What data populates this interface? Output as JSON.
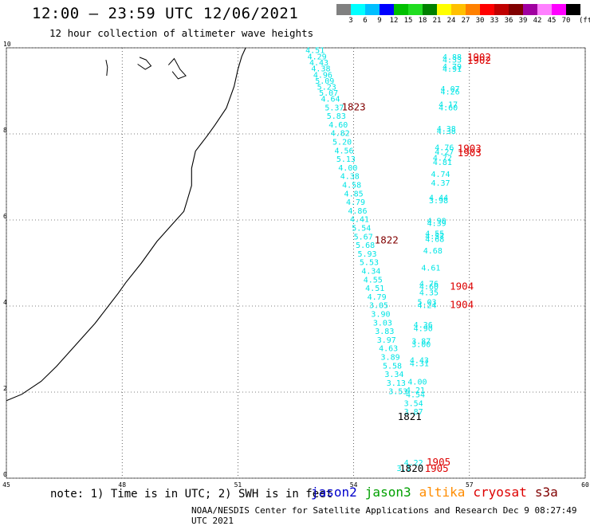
{
  "title": "12:00 – 23:59 UTC 12/06/2021",
  "subtitle": "12 hour collection of altimeter wave heights",
  "colorbar": {
    "colors": [
      "#808080",
      "#00ffff",
      "#00bfff",
      "#0000ff",
      "#00c000",
      "#20dd20",
      "#008000",
      "#ffff00",
      "#ffc000",
      "#ff8000",
      "#ff0000",
      "#c00000",
      "#800000",
      "#a000a0",
      "#ff80ff",
      "#ff00ff",
      "#000000"
    ],
    "labels": [
      "3",
      "6",
      "9",
      "12",
      "15",
      "18",
      "21",
      "24",
      "27",
      "30",
      "33",
      "36",
      "39",
      "42",
      "45",
      "70"
    ],
    "units": "(ft)"
  },
  "axes": {
    "lon_ticks": [
      "45",
      "48",
      "51",
      "54",
      "57",
      "60"
    ],
    "lat_ticks": [
      "0",
      "2",
      "4",
      "6",
      "8",
      "10"
    ]
  },
  "map_data": {
    "lon_range": [
      45,
      60
    ],
    "lat_range": [
      0,
      10
    ],
    "coastline": [
      [
        45.0,
        1.8
      ],
      [
        45.4,
        1.95
      ],
      [
        45.9,
        2.25
      ],
      [
        46.3,
        2.6
      ],
      [
        46.8,
        3.1
      ],
      [
        47.3,
        3.6
      ],
      [
        47.9,
        4.3
      ],
      [
        48.1,
        4.55
      ],
      [
        48.5,
        5.0
      ],
      [
        48.9,
        5.5
      ],
      [
        49.3,
        5.9
      ],
      [
        49.6,
        6.2
      ],
      [
        49.7,
        6.5
      ],
      [
        49.8,
        6.8
      ],
      [
        49.8,
        7.2
      ],
      [
        49.9,
        7.6
      ],
      [
        50.2,
        7.95
      ],
      [
        50.4,
        8.2
      ],
      [
        50.7,
        8.6
      ],
      [
        50.9,
        9.1
      ],
      [
        51.0,
        9.5
      ],
      [
        51.1,
        9.8
      ],
      [
        51.2,
        10.0
      ]
    ],
    "islands": [
      [
        [
          47.6,
          9.35
        ],
        [
          47.62,
          9.55
        ],
        [
          47.58,
          9.72
        ]
      ],
      [
        [
          48.4,
          9.62
        ],
        [
          48.6,
          9.5
        ],
        [
          48.75,
          9.58
        ],
        [
          48.62,
          9.72
        ],
        [
          48.45,
          9.78
        ]
      ],
      [
        [
          49.2,
          9.6
        ],
        [
          49.35,
          9.75
        ],
        [
          49.5,
          9.5
        ],
        [
          49.65,
          9.35
        ],
        [
          49.45,
          9.28
        ],
        [
          49.3,
          9.45
        ]
      ]
    ],
    "observations": [
      {
        "t": "4.51",
        "lon": 53.0,
        "lat": 9.88,
        "c": "#00e5e5"
      },
      {
        "t": "4.29",
        "lon": 53.05,
        "lat": 9.73,
        "c": "#00e5e5"
      },
      {
        "t": "4.43",
        "lon": 53.1,
        "lat": 9.59,
        "c": "#00e5e5"
      },
      {
        "t": "4.38",
        "lon": 53.15,
        "lat": 9.45,
        "c": "#00e5e5"
      },
      {
        "t": "4.96",
        "lon": 53.2,
        "lat": 9.31,
        "c": "#00e5e5"
      },
      {
        "t": "5.09",
        "lon": 53.25,
        "lat": 9.17,
        "c": "#00e5e5"
      },
      {
        "t": "5.23",
        "lon": 53.3,
        "lat": 9.03,
        "c": "#00e5e5"
      },
      {
        "t": "5.07",
        "lon": 53.35,
        "lat": 8.89,
        "c": "#00e5e5"
      },
      {
        "t": "4.64",
        "lon": 53.4,
        "lat": 8.75,
        "c": "#00e5e5"
      },
      {
        "t": "5.37",
        "lon": 53.5,
        "lat": 8.55,
        "c": "#00e5e5"
      },
      {
        "t": "5.83",
        "lon": 53.55,
        "lat": 8.35,
        "c": "#00e5e5"
      },
      {
        "t": "4.60",
        "lon": 53.6,
        "lat": 8.15,
        "c": "#00e5e5"
      },
      {
        "t": "4.82",
        "lon": 53.65,
        "lat": 7.95,
        "c": "#00e5e5"
      },
      {
        "t": "5.20",
        "lon": 53.7,
        "lat": 7.75,
        "c": "#00e5e5"
      },
      {
        "t": "4.56",
        "lon": 53.75,
        "lat": 7.55,
        "c": "#00e5e5"
      },
      {
        "t": "5.13",
        "lon": 53.8,
        "lat": 7.35,
        "c": "#00e5e5"
      },
      {
        "t": "4.00",
        "lon": 53.85,
        "lat": 7.15,
        "c": "#00e5e5"
      },
      {
        "t": "4.38",
        "lon": 53.9,
        "lat": 6.95,
        "c": "#00e5e5"
      },
      {
        "t": "4.58",
        "lon": 53.95,
        "lat": 6.75,
        "c": "#00e5e5"
      },
      {
        "t": "4.85",
        "lon": 54.0,
        "lat": 6.55,
        "c": "#00e5e5"
      },
      {
        "t": "4.79",
        "lon": 54.05,
        "lat": 6.35,
        "c": "#00e5e5"
      },
      {
        "t": "4.86",
        "lon": 54.1,
        "lat": 6.15,
        "c": "#00e5e5"
      },
      {
        "t": "4.41",
        "lon": 54.15,
        "lat": 5.95,
        "c": "#00e5e5"
      },
      {
        "t": "5.54",
        "lon": 54.2,
        "lat": 5.75,
        "c": "#00e5e5"
      },
      {
        "t": "5.67",
        "lon": 54.25,
        "lat": 5.55,
        "c": "#00e5e5"
      },
      {
        "t": "5.68",
        "lon": 54.3,
        "lat": 5.35,
        "c": "#00e5e5"
      },
      {
        "t": "5.93",
        "lon": 54.35,
        "lat": 5.15,
        "c": "#00e5e5"
      },
      {
        "t": "5.53",
        "lon": 54.4,
        "lat": 4.95,
        "c": "#00e5e5"
      },
      {
        "t": "4.34",
        "lon": 54.45,
        "lat": 4.75,
        "c": "#00e5e5"
      },
      {
        "t": "4.55",
        "lon": 54.5,
        "lat": 4.55,
        "c": "#00e5e5"
      },
      {
        "t": "4.51",
        "lon": 54.55,
        "lat": 4.35,
        "c": "#00e5e5"
      },
      {
        "t": "4.79",
        "lon": 54.6,
        "lat": 4.15,
        "c": "#00e5e5"
      },
      {
        "t": "3.05",
        "lon": 54.65,
        "lat": 3.95,
        "c": "#00e5e5"
      },
      {
        "t": "3.90",
        "lon": 54.7,
        "lat": 3.75,
        "c": "#00e5e5"
      },
      {
        "t": "3.03",
        "lon": 54.75,
        "lat": 3.55,
        "c": "#00e5e5"
      },
      {
        "t": "3.83",
        "lon": 54.8,
        "lat": 3.35,
        "c": "#00e5e5"
      },
      {
        "t": "3.97",
        "lon": 54.85,
        "lat": 3.15,
        "c": "#00e5e5"
      },
      {
        "t": "4.63",
        "lon": 54.9,
        "lat": 2.95,
        "c": "#00e5e5"
      },
      {
        "t": "3.89",
        "lon": 54.95,
        "lat": 2.75,
        "c": "#00e5e5"
      },
      {
        "t": "5.58",
        "lon": 55.0,
        "lat": 2.55,
        "c": "#00e5e5"
      },
      {
        "t": "3.34",
        "lon": 55.05,
        "lat": 2.35,
        "c": "#00e5e5"
      },
      {
        "t": "3.13",
        "lon": 55.1,
        "lat": 2.15,
        "c": "#00e5e5"
      },
      {
        "t": "3.53",
        "lon": 55.15,
        "lat": 1.95,
        "c": "#00e5e5"
      },
      {
        "t": "4.88",
        "lon": 56.55,
        "lat": 9.72,
        "c": "#00e5e5"
      },
      {
        "t": "4.33",
        "lon": 56.55,
        "lat": 9.66,
        "c": "#00e5e5"
      },
      {
        "t": "4.79",
        "lon": 56.55,
        "lat": 9.5,
        "c": "#00e5e5"
      },
      {
        "t": "4.91",
        "lon": 56.55,
        "lat": 9.44,
        "c": "#00e5e5"
      },
      {
        "t": "4.07",
        "lon": 56.5,
        "lat": 8.98,
        "c": "#00e5e5"
      },
      {
        "t": "4.26",
        "lon": 56.5,
        "lat": 8.92,
        "c": "#00e5e5"
      },
      {
        "t": "4.17",
        "lon": 56.45,
        "lat": 8.62,
        "c": "#00e5e5"
      },
      {
        "t": "4.60",
        "lon": 56.45,
        "lat": 8.55,
        "c": "#00e5e5"
      },
      {
        "t": "4.38",
        "lon": 56.4,
        "lat": 8.06,
        "c": "#00e5e5"
      },
      {
        "t": "4.38",
        "lon": 56.4,
        "lat": 8.0,
        "c": "#00e5e5"
      },
      {
        "t": "4.76",
        "lon": 56.35,
        "lat": 7.62,
        "c": "#00e5e5"
      },
      {
        "t": "4.27",
        "lon": 56.35,
        "lat": 7.52,
        "c": "#00e5e5"
      },
      {
        "t": "4.72",
        "lon": 56.3,
        "lat": 7.38,
        "c": "#00e5e5"
      },
      {
        "t": "4.81",
        "lon": 56.3,
        "lat": 7.28,
        "c": "#00e5e5"
      },
      {
        "t": "4.74",
        "lon": 56.25,
        "lat": 7.0,
        "c": "#00e5e5"
      },
      {
        "t": "4.37",
        "lon": 56.25,
        "lat": 6.8,
        "c": "#00e5e5"
      },
      {
        "t": "4.44",
        "lon": 56.2,
        "lat": 6.45,
        "c": "#00e5e5"
      },
      {
        "t": "3.98",
        "lon": 56.2,
        "lat": 6.39,
        "c": "#00e5e5"
      },
      {
        "t": "4.90",
        "lon": 56.15,
        "lat": 5.92,
        "c": "#00e5e5"
      },
      {
        "t": "4.39",
        "lon": 56.15,
        "lat": 5.86,
        "c": "#00e5e5"
      },
      {
        "t": "4.55",
        "lon": 56.1,
        "lat": 5.62,
        "c": "#00e5e5"
      },
      {
        "t": "4.57",
        "lon": 56.1,
        "lat": 5.56,
        "c": "#00e5e5"
      },
      {
        "t": "4.68",
        "lon": 56.1,
        "lat": 5.49,
        "c": "#00e5e5"
      },
      {
        "t": "4.68",
        "lon": 56.05,
        "lat": 5.22,
        "c": "#00e5e5"
      },
      {
        "t": "4.61",
        "lon": 56.0,
        "lat": 4.82,
        "c": "#00e5e5"
      },
      {
        "t": "4.76",
        "lon": 55.95,
        "lat": 4.45,
        "c": "#00e5e5"
      },
      {
        "t": "4.60",
        "lon": 55.95,
        "lat": 4.39,
        "c": "#00e5e5"
      },
      {
        "t": "4.35",
        "lon": 55.95,
        "lat": 4.25,
        "c": "#00e5e5"
      },
      {
        "t": "5.03",
        "lon": 55.9,
        "lat": 4.03,
        "c": "#00e5e5"
      },
      {
        "t": "4.24",
        "lon": 55.9,
        "lat": 3.95,
        "c": "#00e5e5"
      },
      {
        "t": "4.36",
        "lon": 55.8,
        "lat": 3.5,
        "c": "#00e5e5"
      },
      {
        "t": "4.90",
        "lon": 55.8,
        "lat": 3.42,
        "c": "#00e5e5"
      },
      {
        "t": "3.87",
        "lon": 55.75,
        "lat": 3.12,
        "c": "#00e5e5"
      },
      {
        "t": "3.00",
        "lon": 55.75,
        "lat": 3.05,
        "c": "#00e5e5"
      },
      {
        "t": "4.43",
        "lon": 55.7,
        "lat": 2.68,
        "c": "#00e5e5"
      },
      {
        "t": "4.31",
        "lon": 55.7,
        "lat": 2.6,
        "c": "#00e5e5"
      },
      {
        "t": "4.00",
        "lon": 55.65,
        "lat": 2.18,
        "c": "#00e5e5"
      },
      {
        "t": "4.21",
        "lon": 55.6,
        "lat": 1.98,
        "c": "#00e5e5"
      },
      {
        "t": "4.54",
        "lon": 55.6,
        "lat": 1.88,
        "c": "#00e5e5"
      },
      {
        "t": "3.54",
        "lon": 55.55,
        "lat": 1.68,
        "c": "#00e5e5"
      },
      {
        "t": "3.87",
        "lon": 55.55,
        "lat": 1.48,
        "c": "#00e5e5"
      },
      {
        "t": "4.22",
        "lon": 55.55,
        "lat": 0.3,
        "c": "#00e5e5"
      },
      {
        "t": "3.1",
        "lon": 55.3,
        "lat": 0.17,
        "c": "#00e5e5"
      }
    ],
    "orbits": [
      {
        "t": "1823",
        "lon": 54.0,
        "lat": 8.55,
        "c": "#800000"
      },
      {
        "t": "1822",
        "lon": 54.85,
        "lat": 5.45,
        "c": "#800000"
      },
      {
        "t": "1821",
        "lon": 55.45,
        "lat": 1.35,
        "c": "#000000"
      },
      {
        "t": "1820",
        "lon": 55.5,
        "lat": 0.15,
        "c": "#000000"
      },
      {
        "t": "1902",
        "lon": 57.25,
        "lat": 9.7,
        "c": "#dd0000"
      },
      {
        "t": "1902",
        "lon": 57.25,
        "lat": 9.63,
        "c": "#dd0000"
      },
      {
        "t": "1903",
        "lon": 57.0,
        "lat": 7.58,
        "c": "#dd0000"
      },
      {
        "t": "1903",
        "lon": 57.0,
        "lat": 7.48,
        "c": "#dd0000"
      },
      {
        "t": "1904",
        "lon": 56.8,
        "lat": 4.38,
        "c": "#dd0000"
      },
      {
        "t": "1904",
        "lon": 56.8,
        "lat": 3.95,
        "c": "#dd0000"
      },
      {
        "t": "1905",
        "lon": 56.2,
        "lat": 0.3,
        "c": "#dd0000"
      },
      {
        "t": "1905",
        "lon": 56.15,
        "lat": 0.15,
        "c": "#dd0000"
      }
    ]
  },
  "footer": {
    "note": "note: 1) Time is in UTC; 2) SWH is in feet",
    "satellites": [
      {
        "name": "jason2",
        "color": "#0000cc"
      },
      {
        "name": "jason3",
        "color": "#00a000"
      },
      {
        "name": "altika",
        "color": "#ff8c00"
      },
      {
        "name": "cryosat",
        "color": "#dd0000"
      },
      {
        "name": "s3a",
        "color": "#800000"
      }
    ],
    "credit": "NOAA/NESDIS Center for Satellite Applications and Research   Dec  9 08:27:49 UTC 2021"
  }
}
